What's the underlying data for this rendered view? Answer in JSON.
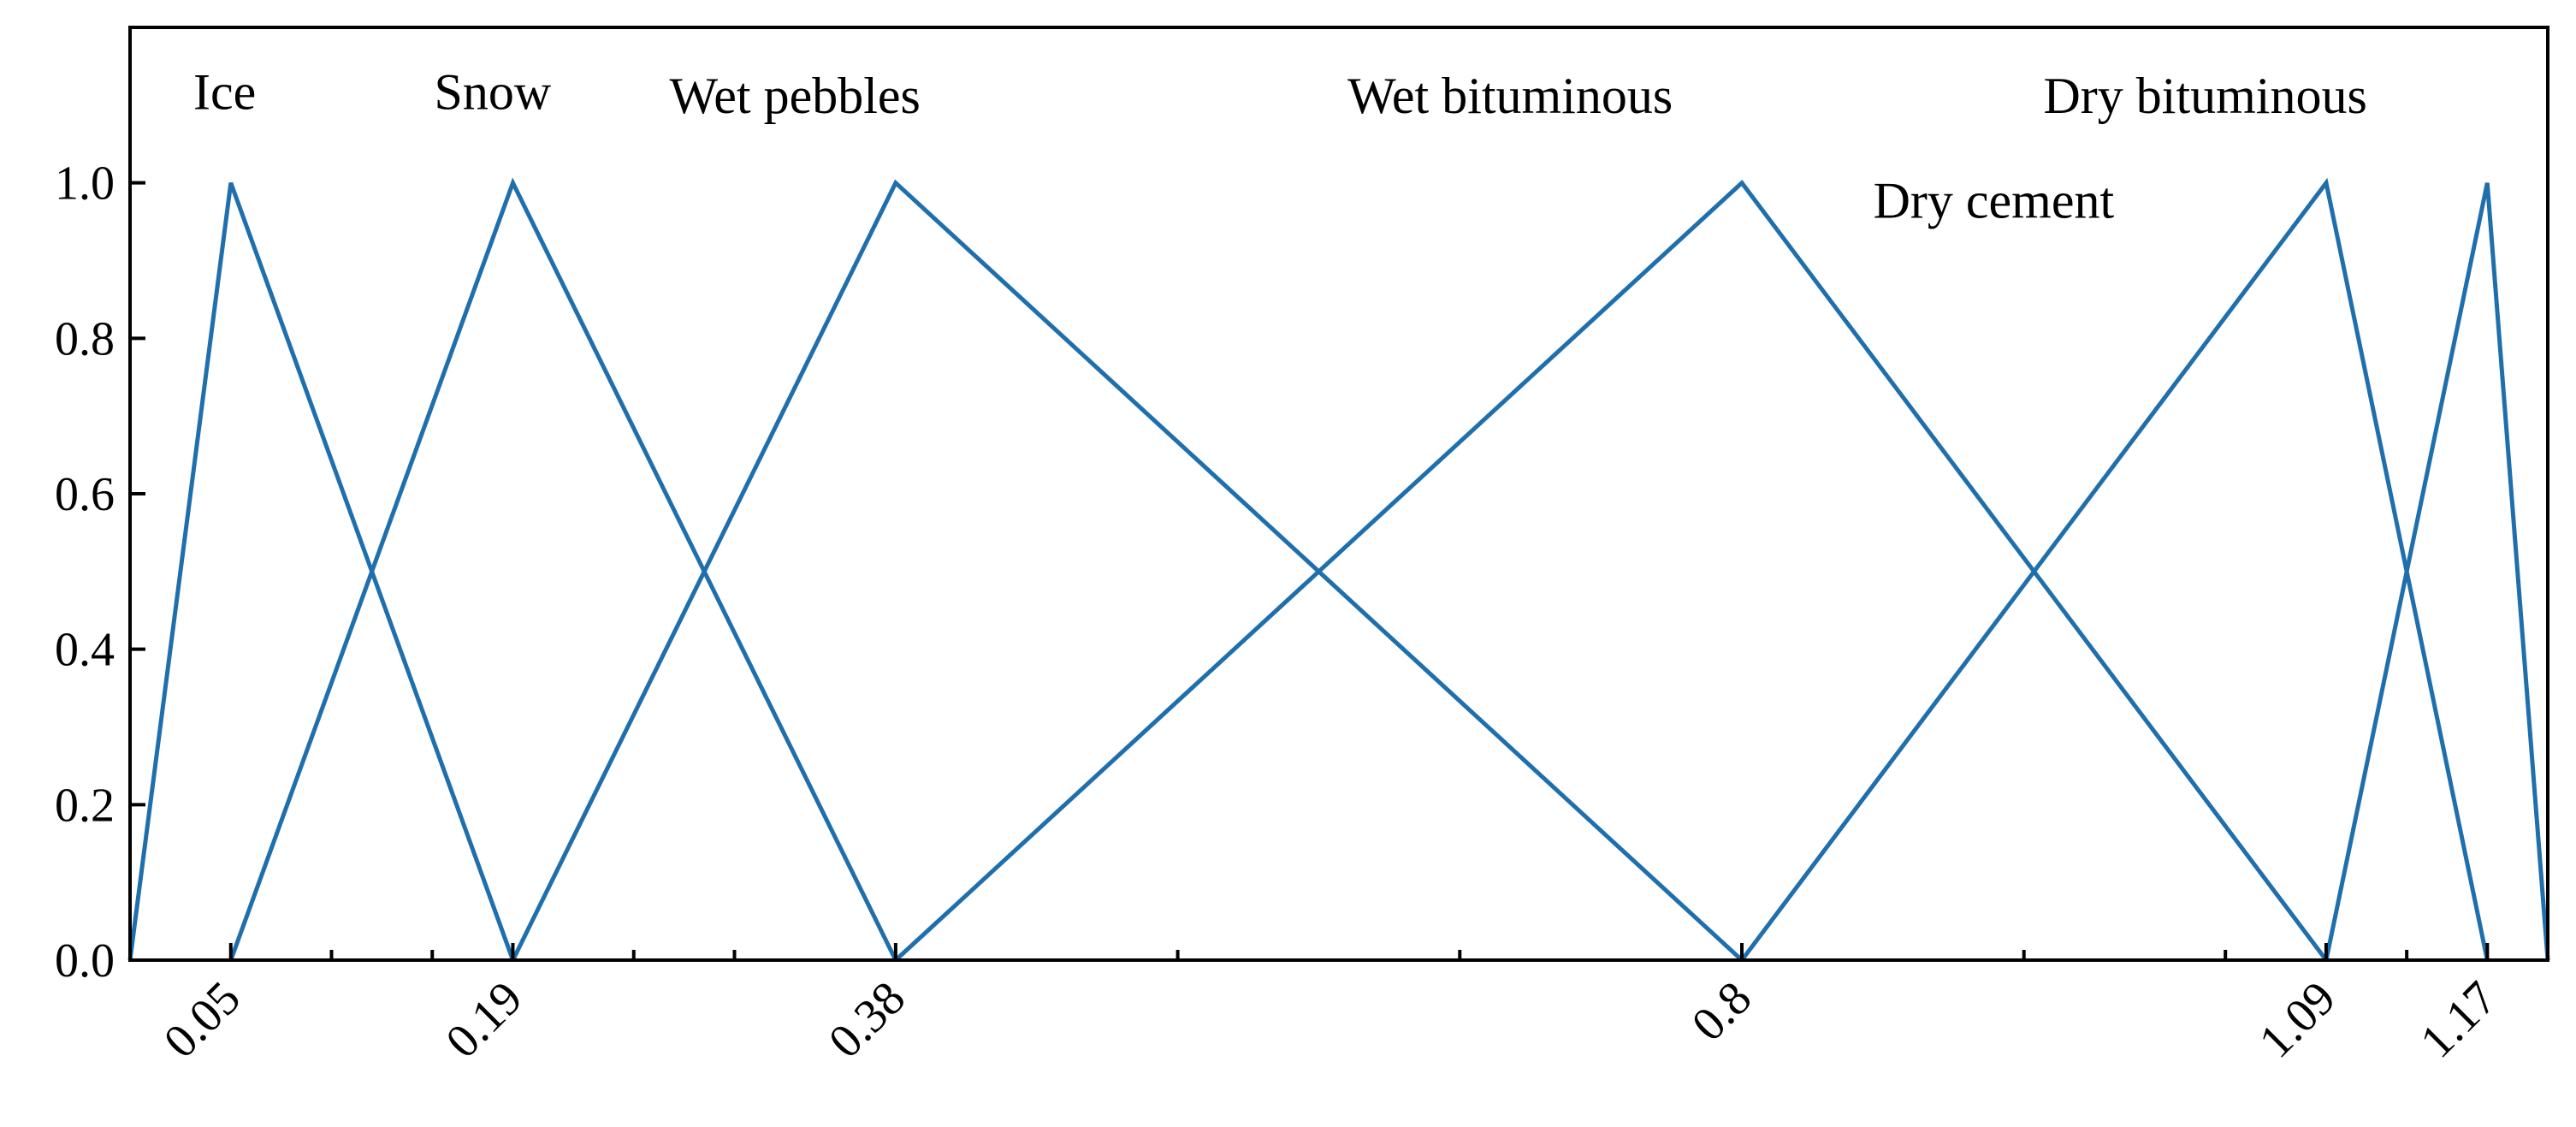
{
  "chart_data": {
    "type": "line",
    "title": "",
    "xlabel": "",
    "ylabel": "",
    "xlim": [
      0.0,
      1.2
    ],
    "ylim": [
      0.0,
      1.2
    ],
    "y_ticks": [
      0.0,
      0.2,
      0.4,
      0.6,
      0.8,
      1.0
    ],
    "y_tick_labels": [
      "0.0",
      "0.2",
      "0.4",
      "0.6",
      "0.8",
      "1.0"
    ],
    "x_ticks": [
      0.05,
      0.19,
      0.38,
      0.8,
      1.09,
      1.17
    ],
    "x_tick_labels": [
      "0.05",
      "0.19",
      "0.38",
      "0.8",
      "1.09",
      "1.17"
    ],
    "x_minor_ticks": [
      0.1,
      0.15,
      0.25,
      0.3,
      0.52,
      0.66,
      0.94,
      1.04,
      1.13
    ],
    "grid": false,
    "legend": "none",
    "color": "#1f6fad",
    "series": [
      {
        "name": "Ice",
        "x": [
          0.0,
          0.05,
          0.19
        ],
        "y": [
          0,
          1,
          0
        ]
      },
      {
        "name": "Snow",
        "x": [
          0.05,
          0.19,
          0.38
        ],
        "y": [
          0,
          1,
          0
        ]
      },
      {
        "name": "Wet pebbles",
        "x": [
          0.19,
          0.38,
          0.8
        ],
        "y": [
          0,
          1,
          0
        ]
      },
      {
        "name": "Wet bituminous",
        "x": [
          0.38,
          0.8,
          1.09
        ],
        "y": [
          0,
          1,
          0
        ]
      },
      {
        "name": "Dry cement",
        "x": [
          0.8,
          1.09,
          1.17
        ],
        "y": [
          0,
          1,
          0
        ]
      },
      {
        "name": "Dry bituminous",
        "x": [
          1.09,
          1.17,
          1.2
        ],
        "y": [
          0,
          1,
          0
        ]
      }
    ]
  }
}
